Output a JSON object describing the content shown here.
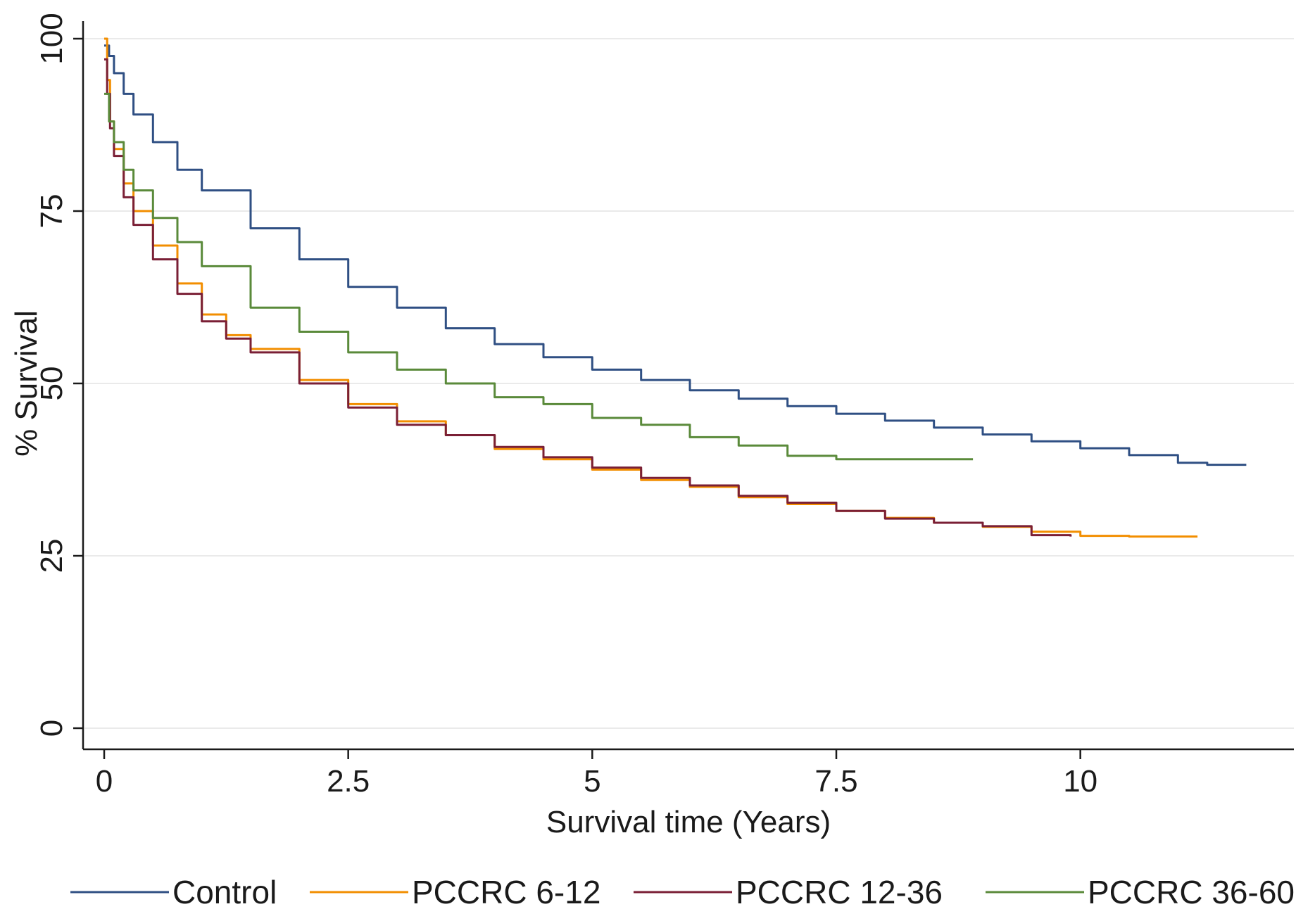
{
  "chart_data": {
    "type": "line",
    "title": "",
    "xlabel": "Survival time (Years)",
    "ylabel": "% Survival",
    "xlim": [
      0,
      12
    ],
    "ylim": [
      0,
      100
    ],
    "xticks": [
      0,
      2.5,
      5,
      7.5,
      10
    ],
    "xtick_labels": [
      "0",
      "2.5",
      "5",
      "7.5",
      "10"
    ],
    "yticks": [
      0,
      25,
      50,
      75,
      100
    ],
    "ytick_labels": [
      "0",
      "25",
      "50",
      "75",
      "100"
    ],
    "grid": "horizontal",
    "legend_position": "bottom",
    "series": [
      {
        "name": "Control",
        "color": "#2f4f83",
        "x": [
          0,
          0.05,
          0.1,
          0.2,
          0.3,
          0.5,
          0.75,
          1.0,
          1.5,
          2.0,
          2.5,
          3.0,
          3.5,
          4.0,
          4.5,
          5.0,
          5.5,
          6.0,
          6.5,
          7.0,
          7.5,
          8.0,
          8.5,
          9.0,
          9.5,
          10.0,
          10.5,
          11.0,
          11.3,
          11.7
        ],
        "y": [
          99,
          97.5,
          95,
          92,
          89,
          85,
          81,
          78,
          72.5,
          68,
          64,
          61,
          58,
          55.7,
          53.8,
          52,
          50.5,
          49,
          47.8,
          46.7,
          45.6,
          44.6,
          43.6,
          42.6,
          41.6,
          40.6,
          39.6,
          38.5,
          38.2,
          38.2
        ]
      },
      {
        "name": "PCCRC 6-12",
        "color": "#f28e00",
        "x": [
          0,
          0.03,
          0.06,
          0.1,
          0.2,
          0.3,
          0.5,
          0.75,
          1.0,
          1.25,
          1.5,
          2.0,
          2.5,
          3.0,
          3.5,
          4.0,
          4.5,
          5.0,
          5.5,
          6.0,
          6.5,
          7.0,
          7.5,
          8.0,
          8.5,
          9.0,
          9.5,
          10.0,
          10.5,
          11.2
        ],
        "y": [
          100,
          94,
          88,
          84,
          79,
          75,
          70,
          64.5,
          60,
          57,
          55,
          50.5,
          47,
          44.5,
          42.5,
          40.5,
          39,
          37.5,
          36,
          35,
          33.5,
          32.5,
          31.5,
          30.5,
          29.8,
          29.2,
          28.5,
          27.9,
          27.8,
          27.8
        ]
      },
      {
        "name": "PCCRC 12-36",
        "color": "#7a1f35",
        "x": [
          0,
          0.03,
          0.06,
          0.1,
          0.2,
          0.3,
          0.5,
          0.75,
          1.0,
          1.25,
          1.5,
          2.0,
          2.5,
          3.0,
          3.5,
          4.0,
          4.5,
          5.0,
          5.5,
          6.0,
          6.5,
          7.0,
          7.5,
          8.0,
          8.5,
          9.0,
          9.5,
          9.9
        ],
        "y": [
          97,
          92,
          87,
          83,
          77,
          73,
          68,
          63,
          59,
          56.5,
          54.5,
          50,
          46.5,
          44,
          42.5,
          40.8,
          39.3,
          37.8,
          36.3,
          35.2,
          33.7,
          32.7,
          31.5,
          30.4,
          29.8,
          29.3,
          28,
          27.8
        ]
      },
      {
        "name": "PCCRC 36-60",
        "color": "#5a8a3a",
        "x": [
          0,
          0.05,
          0.1,
          0.2,
          0.3,
          0.5,
          0.75,
          1.0,
          1.5,
          2.0,
          2.5,
          3.0,
          3.5,
          4.0,
          4.5,
          5.0,
          5.5,
          6.0,
          6.5,
          7.0,
          7.5,
          8.0,
          8.5,
          8.9
        ],
        "y": [
          92,
          88,
          85,
          81,
          78,
          74,
          70.5,
          67,
          61,
          57.5,
          54.5,
          52,
          50,
          48,
          47,
          45,
          44,
          42.2,
          41,
          39.5,
          39,
          39,
          39,
          39
        ]
      }
    ]
  }
}
